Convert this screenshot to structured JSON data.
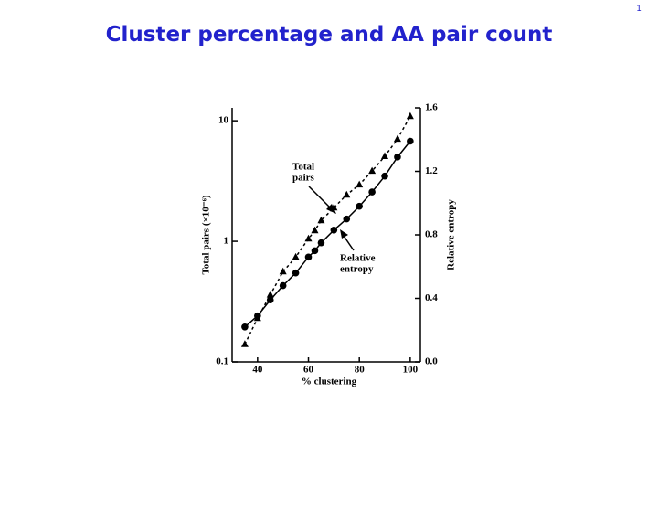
{
  "slide": {
    "title": "Cluster percentage and AA pair count",
    "page_number": "1"
  },
  "chart_data": {
    "type": "line",
    "x_label": "% clustering",
    "y_label": "Total pairs (×10⁻⁶)",
    "y2_label": "Relative entropy",
    "x": [
      35,
      40,
      45,
      50,
      55,
      60,
      62.5,
      65,
      70,
      75,
      80,
      85,
      90,
      95,
      100
    ],
    "xlim": [
      30,
      104
    ],
    "xticks": [
      40,
      60,
      80,
      100
    ],
    "ylim": [
      0.1,
      12.8
    ],
    "yticks": [
      0.1,
      1,
      10
    ],
    "log_y": true,
    "y2lim": [
      0,
      1.6
    ],
    "y2ticks": [
      {
        "value": 0,
        "label": "0.0"
      },
      0.4,
      0.8,
      1.2,
      1.6
    ],
    "series": [
      {
        "name": "Total pairs",
        "color": "#000000",
        "marker": "triangle",
        "line_style": "dashed",
        "values": [
          0.14,
          0.23,
          0.36,
          0.56,
          0.74,
          1.05,
          1.23,
          1.49,
          1.9,
          2.43,
          2.95,
          3.83,
          5.07,
          7.05,
          10.9
        ]
      },
      {
        "name": "Relative entropy",
        "color": "#000000",
        "marker": "circle",
        "line_style": "solid",
        "axis": "y2",
        "values": [
          0.22,
          0.29,
          0.39,
          0.48,
          0.56,
          0.66,
          0.7,
          0.75,
          0.83,
          0.9,
          0.98,
          1.07,
          1.17,
          1.29,
          1.39
        ]
      }
    ],
    "annotations": [
      {
        "lines": [
          "Total",
          "pairs"
        ]
      },
      {
        "lines": [
          "Relative",
          "entropy"
        ]
      }
    ]
  }
}
